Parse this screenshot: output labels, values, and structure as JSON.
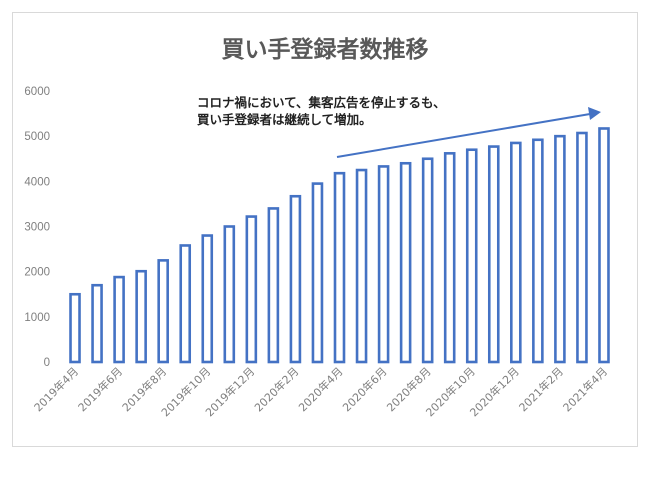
{
  "chart_data": {
    "type": "bar",
    "title": "買い手登録者数推移",
    "xlabel": "",
    "ylabel": "",
    "ylim": [
      0,
      6000
    ],
    "yticks": [
      0,
      1000,
      2000,
      3000,
      4000,
      5000,
      6000
    ],
    "grid": false,
    "categories": [
      "2019年4月",
      "2019年5月",
      "2019年6月",
      "2019年7月",
      "2019年8月",
      "2019年9月",
      "2019年10月",
      "2019年11月",
      "2019年12月",
      "2020年1月",
      "2020年2月",
      "2020年3月",
      "2020年4月",
      "2020年5月",
      "2020年6月",
      "2020年7月",
      "2020年8月",
      "2020年9月",
      "2020年10月",
      "2020年11月",
      "2020年12月",
      "2021年1月",
      "2021年2月",
      "2021年3月",
      "2021年4月"
    ],
    "shown_xtick_labels": [
      "2019年4月",
      "2019年6月",
      "2019年8月",
      "2019年10月",
      "2019年12月",
      "2020年2月",
      "2020年4月",
      "2020年6月",
      "2020年8月",
      "2020年10月",
      "2020年12月",
      "2021年2月",
      "2021年4月"
    ],
    "values": [
      1500,
      1700,
      1880,
      2010,
      2250,
      2580,
      2800,
      3000,
      3220,
      3400,
      3670,
      3950,
      4180,
      4250,
      4330,
      4400,
      4500,
      4620,
      4700,
      4770,
      4850,
      4920,
      5000,
      5070,
      5170
    ],
    "bar_style": "outline",
    "bar_color": "#4472c4",
    "annotation": {
      "lines": [
        "コロナ禍において、集客広告を停止するも、",
        "買い手登録者は継続して増加。"
      ],
      "arrow_color": "#4472c4"
    }
  }
}
